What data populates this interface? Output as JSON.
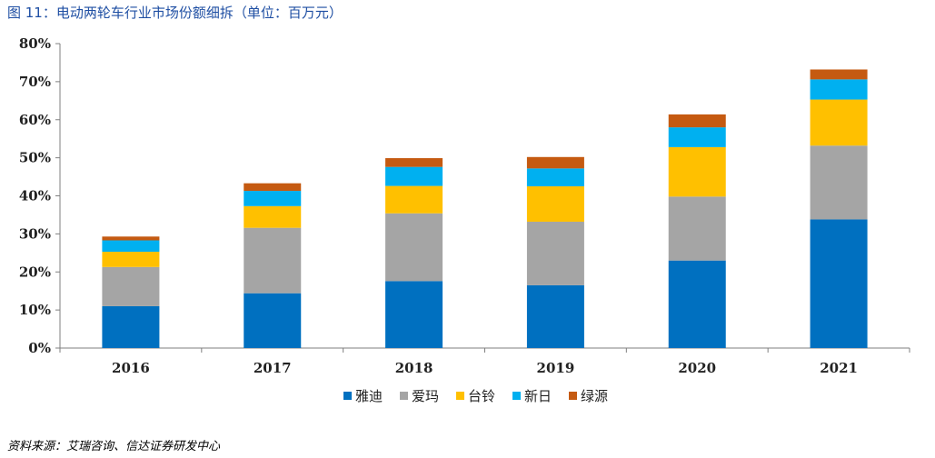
{
  "title": "图 11：电动两轮车行业市场份额细拆（单位：百万元）",
  "source": "资料来源：艾瑞咨询、信达证券研发中心",
  "chart_data": {
    "type": "bar",
    "stacked": true,
    "title": "图 11：电动两轮车行业市场份额细拆（单位：百万元）",
    "xlabel": "",
    "ylabel": "",
    "ylim": [
      0,
      80
    ],
    "yticks": [
      0,
      10,
      20,
      30,
      40,
      50,
      60,
      70,
      80
    ],
    "ytick_labels": [
      "0%",
      "10%",
      "20%",
      "30%",
      "40%",
      "50%",
      "60%",
      "70%",
      "80%"
    ],
    "categories": [
      "2016",
      "2017",
      "2018",
      "2019",
      "2020",
      "2021"
    ],
    "series": [
      {
        "name": "雅迪",
        "color": "#0070c0",
        "values": [
          11.0,
          14.4,
          17.6,
          16.5,
          23.0,
          33.8
        ]
      },
      {
        "name": "爱玛",
        "color": "#a5a5a5",
        "values": [
          10.3,
          17.2,
          17.8,
          16.7,
          16.8,
          19.4
        ]
      },
      {
        "name": "台铃",
        "color": "#ffc000",
        "values": [
          4.0,
          5.7,
          7.2,
          9.3,
          13.0,
          12.1
        ]
      },
      {
        "name": "新日",
        "color": "#00b0f0",
        "values": [
          3.0,
          4.0,
          5.0,
          4.7,
          5.2,
          5.3
        ]
      },
      {
        "name": "绿源",
        "color": "#c55a11",
        "values": [
          1.0,
          2.0,
          2.3,
          3.0,
          3.4,
          2.6
        ]
      }
    ],
    "legend_position": "bottom",
    "grid": false
  }
}
